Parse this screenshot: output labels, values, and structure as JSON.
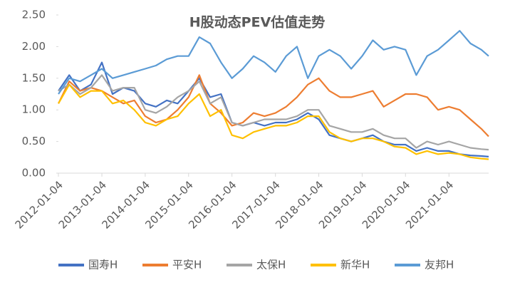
{
  "chart_data": {
    "type": "line",
    "title": "H股动态PEV估值走势",
    "x": [
      "2012-01-04",
      "2012-04-04",
      "2012-07-04",
      "2012-10-04",
      "2013-01-04",
      "2013-04-04",
      "2013-07-04",
      "2013-10-04",
      "2014-01-04",
      "2014-04-04",
      "2014-07-04",
      "2014-10-04",
      "2015-01-04",
      "2015-04-04",
      "2015-07-04",
      "2015-10-04",
      "2016-01-04",
      "2016-04-04",
      "2016-07-04",
      "2016-10-04",
      "2017-01-04",
      "2017-04-04",
      "2017-07-04",
      "2017-10-04",
      "2018-01-04",
      "2018-04-04",
      "2018-07-04",
      "2018-10-04",
      "2019-01-04",
      "2019-04-04",
      "2019-07-04",
      "2019-10-04",
      "2020-01-04",
      "2020-04-04",
      "2020-07-04",
      "2020-10-04",
      "2021-01-04",
      "2021-04-04",
      "2021-07-04",
      "2021-10-04",
      "2021-12-04"
    ],
    "series": [
      {
        "name": "国寿H",
        "color": "#4472c4",
        "values": [
          1.3,
          1.55,
          1.3,
          1.4,
          1.75,
          1.25,
          1.35,
          1.3,
          1.1,
          1.05,
          1.15,
          1.1,
          1.3,
          1.5,
          1.2,
          1.25,
          0.8,
          0.75,
          0.8,
          0.75,
          0.8,
          0.8,
          0.85,
          0.95,
          0.85,
          0.6,
          0.55,
          0.5,
          0.55,
          0.6,
          0.5,
          0.45,
          0.45,
          0.35,
          0.4,
          0.35,
          0.35,
          0.3,
          0.28,
          0.27,
          0.26
        ]
      },
      {
        "name": "平安H",
        "color": "#ed7d31",
        "values": [
          1.1,
          1.45,
          1.3,
          1.35,
          1.3,
          1.2,
          1.1,
          1.15,
          0.9,
          0.8,
          0.85,
          1.0,
          1.2,
          1.55,
          1.1,
          0.95,
          0.75,
          0.8,
          0.95,
          0.9,
          0.95,
          1.05,
          1.2,
          1.4,
          1.5,
          1.3,
          1.2,
          1.2,
          1.25,
          1.3,
          1.05,
          1.15,
          1.25,
          1.25,
          1.2,
          1.0,
          1.05,
          1.0,
          0.85,
          0.7,
          0.58
        ]
      },
      {
        "name": "太保H",
        "color": "#a5a5a5",
        "values": [
          1.3,
          1.4,
          1.25,
          1.35,
          1.55,
          1.3,
          1.35,
          1.35,
          1.0,
          0.95,
          1.05,
          1.2,
          1.3,
          1.45,
          1.1,
          1.2,
          0.8,
          0.75,
          0.8,
          0.85,
          0.85,
          0.85,
          0.9,
          1.0,
          1.0,
          0.75,
          0.7,
          0.65,
          0.65,
          0.7,
          0.6,
          0.55,
          0.55,
          0.4,
          0.5,
          0.45,
          0.5,
          0.45,
          0.4,
          0.38,
          0.37
        ]
      },
      {
        "name": "新华H",
        "color": "#ffc000",
        "values": [
          1.1,
          1.4,
          1.2,
          1.3,
          1.3,
          1.1,
          1.15,
          1.0,
          0.8,
          0.75,
          0.85,
          0.9,
          1.1,
          1.25,
          0.9,
          1.0,
          0.6,
          0.55,
          0.65,
          0.7,
          0.75,
          0.75,
          0.8,
          0.9,
          0.9,
          0.65,
          0.55,
          0.5,
          0.55,
          0.55,
          0.5,
          0.42,
          0.4,
          0.3,
          0.35,
          0.3,
          0.32,
          0.3,
          0.25,
          0.23,
          0.22
        ]
      },
      {
        "name": "友邦H",
        "color": "#5b9bd5",
        "values": [
          1.25,
          1.5,
          1.45,
          1.55,
          1.65,
          1.5,
          1.55,
          1.6,
          1.65,
          1.7,
          1.8,
          1.85,
          1.85,
          2.15,
          2.05,
          1.75,
          1.5,
          1.65,
          1.85,
          1.75,
          1.6,
          1.85,
          2.0,
          1.5,
          1.85,
          1.95,
          1.85,
          1.65,
          1.85,
          2.1,
          1.95,
          2.0,
          1.95,
          1.55,
          1.85,
          1.95,
          2.1,
          2.25,
          2.05,
          1.95,
          1.85
        ]
      }
    ],
    "xlim": [
      "2012-01-04",
      "2021-12-04"
    ],
    "xticks": [
      "2012-01-04",
      "2013-01-04",
      "2014-01-04",
      "2015-01-04",
      "2016-01-04",
      "2017-01-04",
      "2018-01-04",
      "2019-01-04",
      "2020-01-04",
      "2021-01-04"
    ],
    "ylim": [
      0,
      2.5
    ],
    "yticks": [
      {
        "value": 0,
        "label": "0.00"
      },
      {
        "value": 0.5,
        "label": "0.50"
      },
      {
        "value": 1,
        "label": "1.00"
      },
      {
        "value": 1.5,
        "label": "1.50"
      },
      {
        "value": 2,
        "label": "2.00"
      },
      {
        "value": 2.5,
        "label": "2.50"
      }
    ],
    "legend": "bottom"
  }
}
